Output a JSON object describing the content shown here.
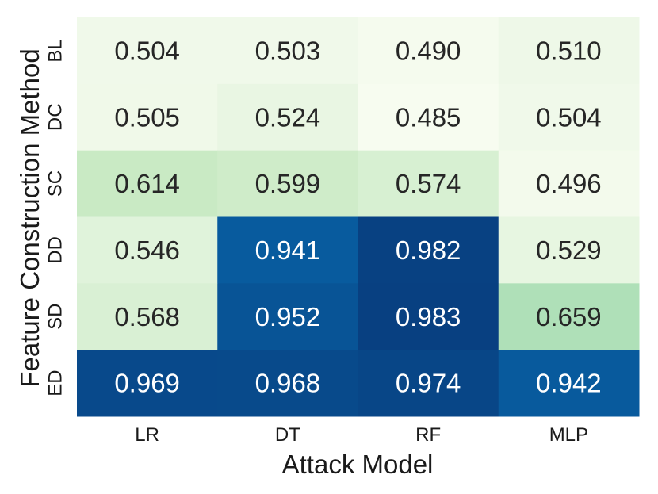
{
  "chart_data": {
    "type": "heatmap",
    "title": "",
    "xlabel": "Attack Model",
    "ylabel": "Feature Construction Method",
    "x_categories": [
      "LR",
      "DT",
      "RF",
      "MLP"
    ],
    "y_categories": [
      "BL",
      "DC",
      "SC",
      "DD",
      "SD",
      "ED"
    ],
    "values": [
      [
        0.504,
        0.503,
        0.49,
        0.51
      ],
      [
        0.505,
        0.524,
        0.485,
        0.504
      ],
      [
        0.614,
        0.599,
        0.574,
        0.496
      ],
      [
        0.546,
        0.941,
        0.982,
        0.529
      ],
      [
        0.568,
        0.952,
        0.983,
        0.659
      ],
      [
        0.969,
        0.968,
        0.974,
        0.942
      ]
    ],
    "value_labels": [
      [
        "0.504",
        "0.503",
        "0.490",
        "0.510"
      ],
      [
        "0.505",
        "0.524",
        "0.485",
        "0.504"
      ],
      [
        "0.614",
        "0.599",
        "0.574",
        "0.496"
      ],
      [
        "0.546",
        "0.941",
        "0.982",
        "0.529"
      ],
      [
        "0.568",
        "0.952",
        "0.983",
        "0.659"
      ],
      [
        "0.969",
        "0.968",
        "0.974",
        "0.942"
      ]
    ],
    "colormap": "GnBu",
    "colorbar": false,
    "grid": false
  }
}
